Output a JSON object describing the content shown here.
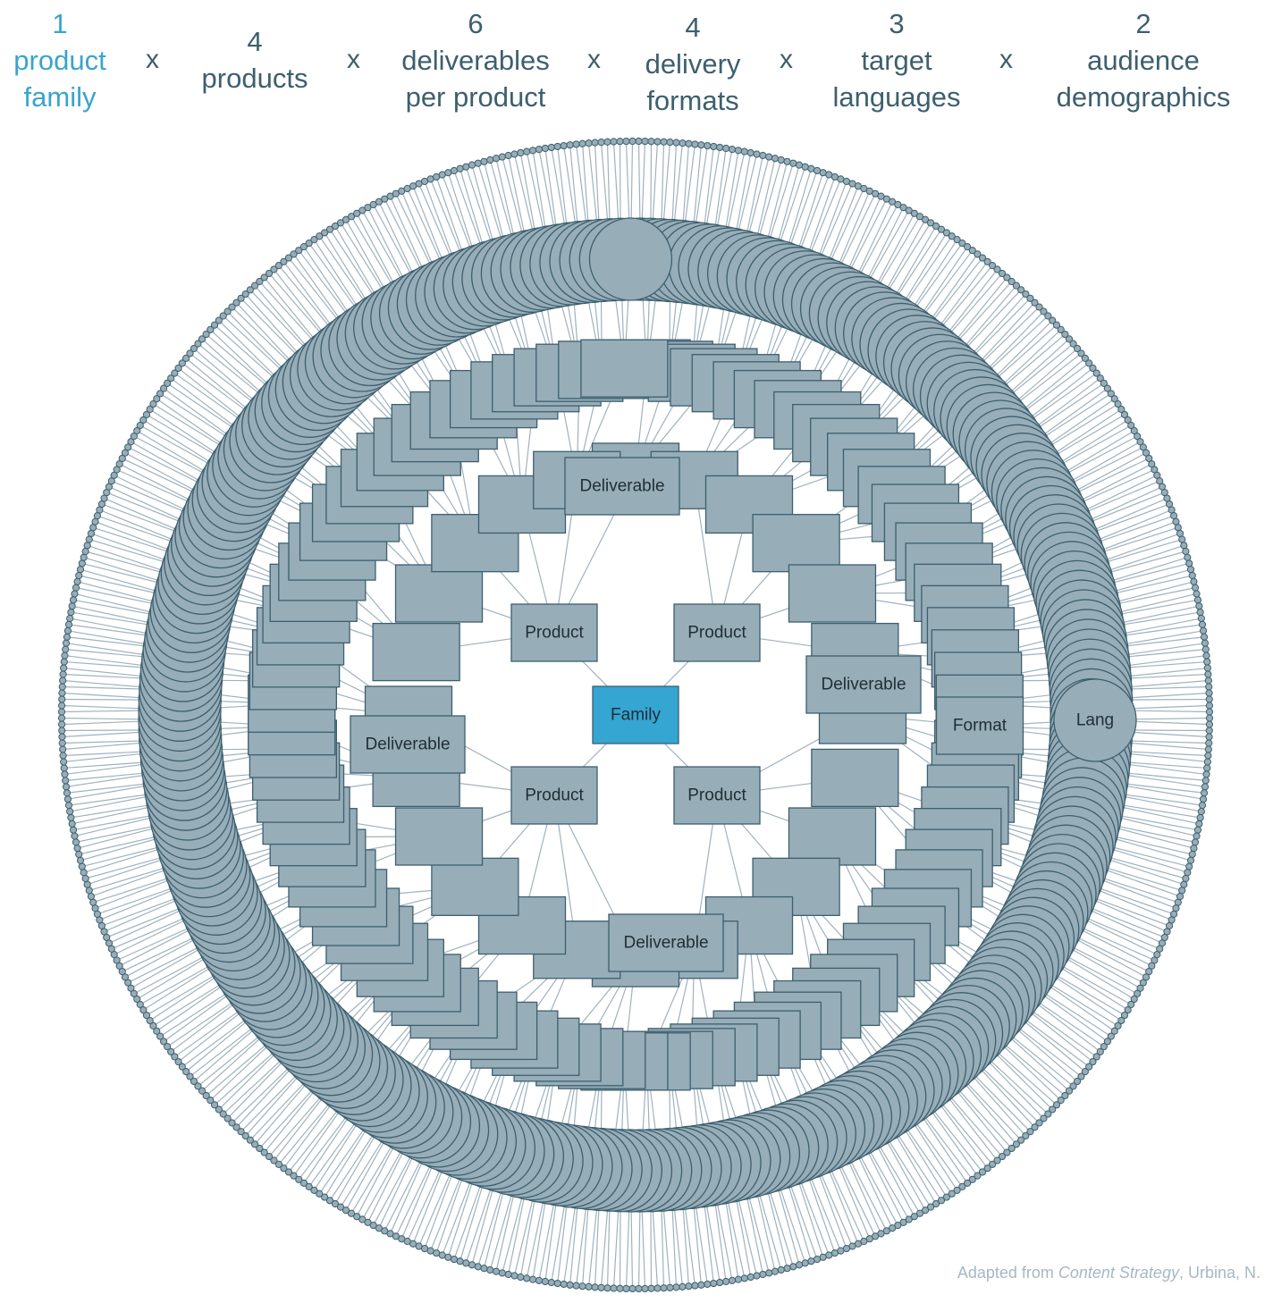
{
  "header": {
    "factors": [
      {
        "number": "1",
        "lines": [
          "product",
          "family"
        ]
      },
      {
        "number": "4",
        "lines": [
          "products"
        ]
      },
      {
        "number": "6",
        "lines": [
          "deliverables",
          "per product"
        ]
      },
      {
        "number": "4",
        "lines": [
          "delivery",
          "formats"
        ]
      },
      {
        "number": "3",
        "lines": [
          "target",
          "languages"
        ]
      },
      {
        "number": "2",
        "lines": [
          "audience",
          "demographics"
        ]
      }
    ],
    "multiplier": "x"
  },
  "diagram": {
    "labels": {
      "family": "Family",
      "product": "Product",
      "deliverable": "Deliverable",
      "format": "Format",
      "lang": "Lang"
    },
    "counts": {
      "products": 4,
      "deliverables": 24,
      "formats": 96,
      "languages": 288,
      "demographics": 576
    }
  },
  "colors": {
    "accent": "#3aa4cc",
    "text": "#3d5f6e",
    "node_fill": "#97adb8",
    "node_stroke": "#3d5f6e",
    "edge": "#9fb2bd",
    "family_fill": "#35a5d2",
    "credit": "#a6b8c2"
  },
  "credit": {
    "prefix": "Adapted from ",
    "source": "Content Strategy",
    "suffix": ", Urbina, N."
  }
}
